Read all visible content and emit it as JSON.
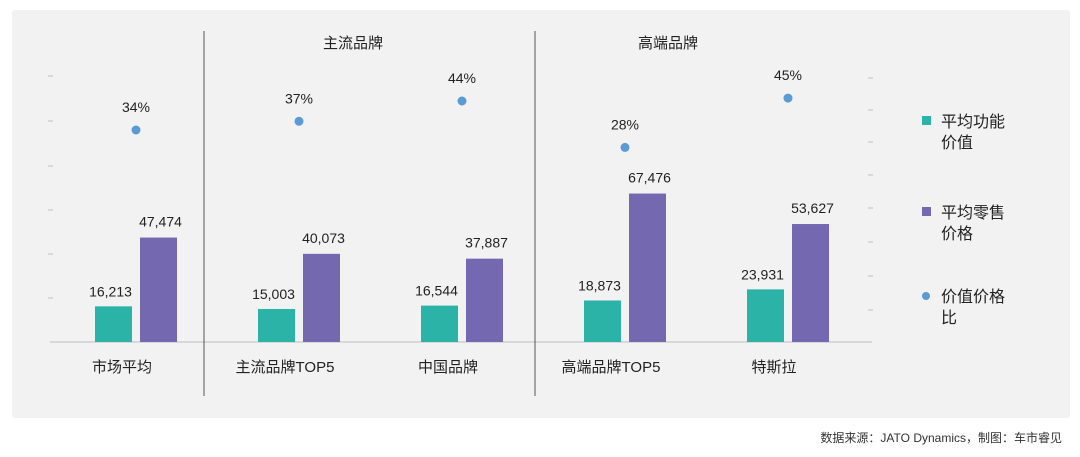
{
  "chart_data": {
    "type": "bar",
    "categories": [
      "市场平均",
      "主流品牌TOP5",
      "中国品牌",
      "高端品牌TOP5",
      "特斯拉"
    ],
    "group_labels": [
      "主流品牌",
      "高端品牌"
    ],
    "series": [
      {
        "name": "平均功能价值",
        "values": [
          16213,
          15003,
          16544,
          18873,
          23931
        ],
        "labels": [
          "16,213",
          "15,003",
          "16,544",
          "18,873",
          "23,931"
        ],
        "color": "#2bb3a8"
      },
      {
        "name": "平均零售价格",
        "values": [
          47474,
          40073,
          37887,
          67476,
          53627
        ],
        "labels": [
          "47,474",
          "40,073",
          "37,887",
          "67,476",
          "53,627"
        ],
        "color": "#7468b0"
      }
    ],
    "ratio": {
      "name": "价值价格比",
      "values": [
        34,
        37,
        44,
        28,
        45
      ],
      "labels": [
        "34%",
        "37%",
        "44%",
        "28%",
        "45%"
      ],
      "color": "#5b9bd5"
    },
    "legend": [
      {
        "line1": "平均功能",
        "line2": "价值",
        "color": "#2bb3a8",
        "icon": "square"
      },
      {
        "line1": "平均零售",
        "line2": "价格",
        "color": "#7468b0",
        "icon": "square"
      },
      {
        "line1": "价值价格",
        "line2": "比",
        "color": "#5b9bd5",
        "icon": "dot"
      }
    ],
    "ylim_bars": [
      0,
      70000
    ],
    "ylim_ratio": [
      0,
      60
    ],
    "legend_position": "right",
    "grid": false
  },
  "source_text": "数据来源：JATO Dynamics，制图：车市睿见"
}
